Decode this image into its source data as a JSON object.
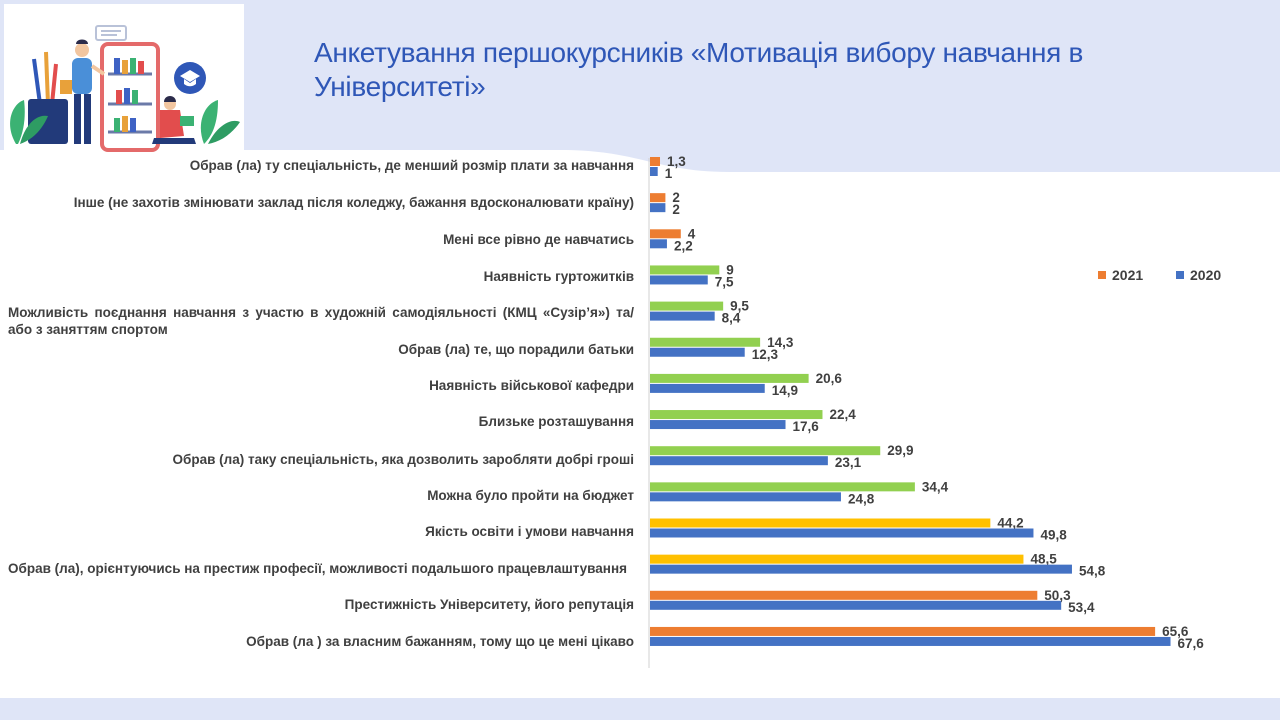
{
  "title": "Анкетування першокурсників «Мотивація вибору навчання в Університеті»",
  "colors": {
    "2021": "#ed7d31",
    "2020": "#4472c4",
    "green": "#92d050",
    "yellow": "#ffc000",
    "background": "#dfe5f7",
    "title": "#2f57b7"
  },
  "chart_data": {
    "type": "bar",
    "orientation": "horizontal",
    "legend_position": "right",
    "grid": false,
    "categories": [
      "Обрав (ла) ту спеціальність, де менший розмір плати за навчання",
      "Інше (не захотів змінювати заклад після коледжу, бажання вдосконалювати країну)",
      "Мені все рівно де навчатись",
      "Наявність гуртожитків",
      "Можливість поєднання навчання з участю в художній самодіяльності (КМЦ «Сузір’я») та/ або з заняттям спортом",
      "Обрав (ла) те, що порадили батьки",
      "Наявність військової кафедри",
      "Близьке розташування",
      "Обрав (ла) таку спеціальність, яка дозволить заробляти добрі гроші",
      "Можна було пройти на бюджет",
      "Якість освіти і умови навчання",
      "Обрав (ла), орієнтуючись на престиж професії, можливості подальшого працевлаштування",
      "Престижність Університету, його репутація",
      "Обрав (ла ) за власним бажанням, тому що це мені цікаво"
    ],
    "series": [
      {
        "name": "2021",
        "values": [
          1.3,
          2,
          4,
          9,
          9.5,
          14.3,
          20.6,
          22.4,
          29.9,
          34.4,
          44.2,
          48.5,
          50.3,
          65.6
        ],
        "labels": [
          "1,3",
          "2",
          "4",
          "9",
          "9,5",
          "14,3",
          "20,6",
          "22,4",
          "29,9",
          "34,4",
          "44,2",
          "48,5",
          "50,3",
          "65,6"
        ],
        "bar_colors": [
          "#ed7d31",
          "#ed7d31",
          "#ed7d31",
          "#92d050",
          "#92d050",
          "#92d050",
          "#92d050",
          "#92d050",
          "#92d050",
          "#92d050",
          "#ffc000",
          "#ffc000",
          "#ed7d31",
          "#ed7d31"
        ]
      },
      {
        "name": "2020",
        "values": [
          1,
          2,
          2.2,
          7.5,
          8.4,
          12.3,
          14.9,
          17.6,
          23.1,
          24.8,
          49.8,
          54.8,
          53.4,
          67.6
        ],
        "labels": [
          "1",
          "2",
          "2,2",
          "7,5",
          "8,4",
          "12,3",
          "14,9",
          "17,6",
          "23,1",
          "24,8",
          "49,8",
          "54,8",
          "53,4",
          "67,6"
        ],
        "bar_colors": [
          "#4472c4",
          "#4472c4",
          "#4472c4",
          "#4472c4",
          "#4472c4",
          "#4472c4",
          "#4472c4",
          "#4472c4",
          "#4472c4",
          "#4472c4",
          "#4472c4",
          "#4472c4",
          "#4472c4",
          "#4472c4"
        ]
      }
    ]
  },
  "illustration": {
    "icons": [
      "student-reading-icon",
      "bookshelf-phone-icon",
      "graduation-cap-icon",
      "pencil-cup-icon",
      "plant-icon"
    ]
  }
}
